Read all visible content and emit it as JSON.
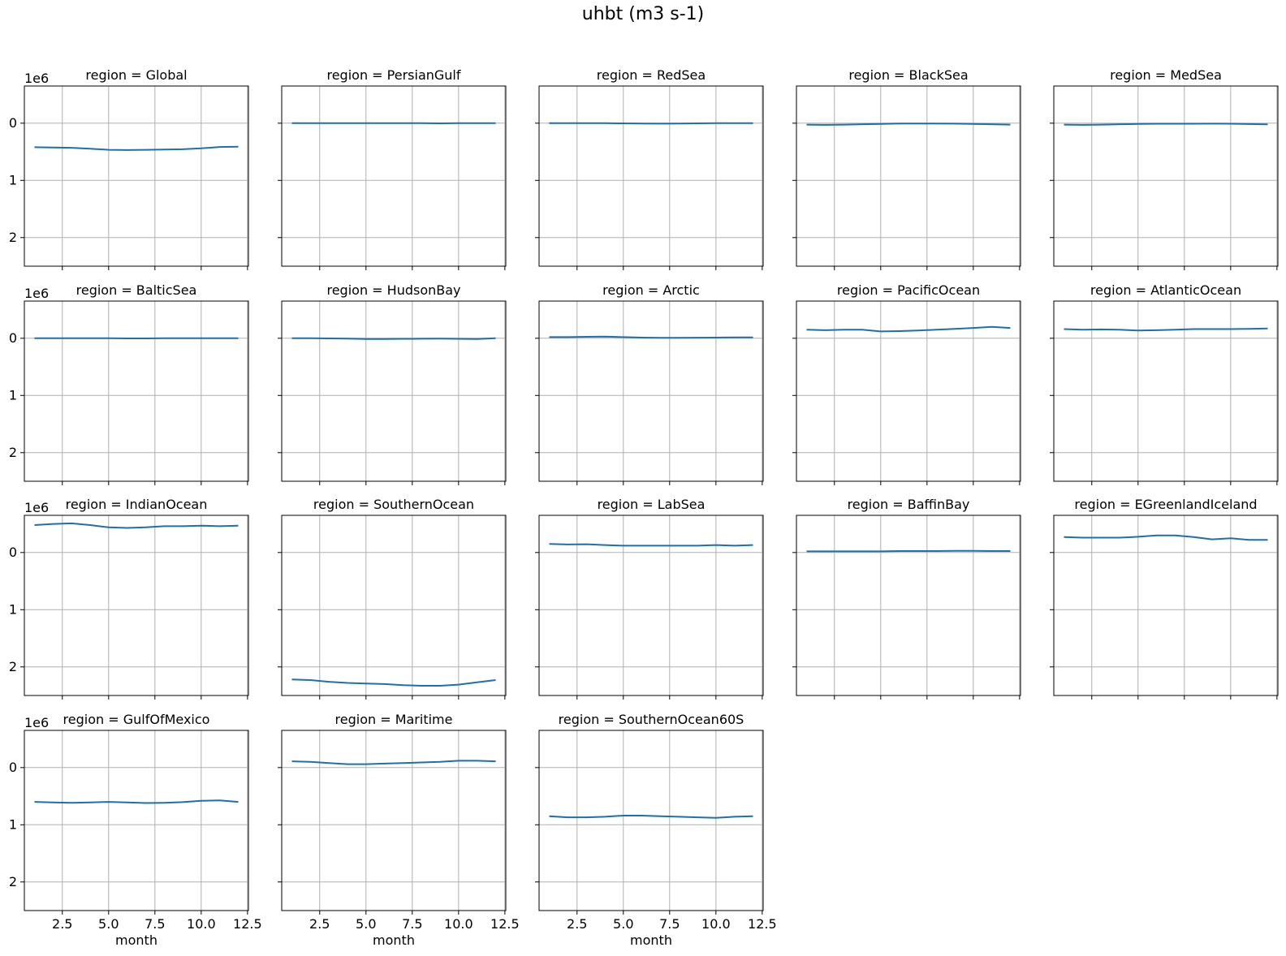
{
  "figure": {
    "title": "uhbt (m3 s-1)"
  },
  "chart_data": {
    "type": "line",
    "layout": "facet grid 4 rows x 5 cols",
    "title": "uhbt (m3 s-1)",
    "xlabel": "month",
    "ylabel": "",
    "y_offset_label": "1e6",
    "y_axis_inverted": true,
    "ylim": [
      -0.65,
      2.5
    ],
    "xlim": [
      0.45,
      12.55
    ],
    "xticks": [
      "2.5",
      "5.0",
      "7.5",
      "10.0",
      "12.5"
    ],
    "yticks": [
      "0",
      "1",
      "2"
    ],
    "grid": true,
    "line_color": "#1f6fab",
    "x": [
      1,
      2,
      3,
      4,
      5,
      6,
      7,
      8,
      9,
      10,
      11,
      12
    ],
    "panels": [
      {
        "title": "region = Global",
        "values": [
          0.42,
          0.425,
          0.43,
          0.445,
          0.465,
          0.47,
          0.465,
          0.46,
          0.455,
          0.44,
          0.415,
          0.41
        ]
      },
      {
        "title": "region = PersianGulf",
        "values": [
          0.0,
          0.0,
          0.0,
          0.0,
          0.0,
          -0.002,
          0.0,
          0.0,
          0.002,
          0.0,
          0.0,
          0.0
        ]
      },
      {
        "title": "region = RedSea",
        "values": [
          0.0,
          0.0,
          0.0,
          0.0,
          0.002,
          0.005,
          0.008,
          0.006,
          0.003,
          0.0,
          -0.002,
          0.0
        ]
      },
      {
        "title": "region = BlackSea",
        "values": [
          0.025,
          0.03,
          0.025,
          0.018,
          0.012,
          0.007,
          0.005,
          0.006,
          0.009,
          0.013,
          0.018,
          0.025
        ]
      },
      {
        "title": "region = MedSea",
        "values": [
          0.025,
          0.03,
          0.025,
          0.018,
          0.014,
          0.01,
          0.01,
          0.01,
          0.008,
          0.01,
          0.015,
          0.02
        ]
      },
      {
        "title": "region = BalticSea",
        "values": [
          0.0,
          0.0,
          0.0,
          0.0,
          0.0,
          0.002,
          0.002,
          0.0,
          0.0,
          0.0,
          0.0,
          0.0
        ]
      },
      {
        "title": "region = HudsonBay",
        "values": [
          0.0,
          0.0,
          0.002,
          0.006,
          0.012,
          0.012,
          0.01,
          0.008,
          0.006,
          0.01,
          0.012,
          0.0
        ]
      },
      {
        "title": "region = Arctic",
        "values": [
          -0.02,
          -0.02,
          -0.025,
          -0.03,
          -0.02,
          -0.012,
          -0.008,
          -0.008,
          -0.01,
          -0.012,
          -0.015,
          -0.015
        ]
      },
      {
        "title": "region = PacificOcean",
        "values": [
          -0.15,
          -0.14,
          -0.15,
          -0.15,
          -0.12,
          -0.125,
          -0.135,
          -0.15,
          -0.165,
          -0.18,
          -0.2,
          -0.18
        ]
      },
      {
        "title": "region = AtlanticOcean",
        "values": [
          -0.16,
          -0.15,
          -0.155,
          -0.15,
          -0.135,
          -0.14,
          -0.15,
          -0.16,
          -0.16,
          -0.16,
          -0.165,
          -0.17
        ]
      },
      {
        "title": "region = IndianOcean",
        "values": [
          -0.48,
          -0.5,
          -0.51,
          -0.48,
          -0.44,
          -0.43,
          -0.44,
          -0.46,
          -0.46,
          -0.47,
          -0.46,
          -0.47
        ]
      },
      {
        "title": "region = SouthernOcean",
        "values": [
          2.22,
          2.23,
          2.26,
          2.28,
          2.29,
          2.3,
          2.32,
          2.33,
          2.33,
          2.31,
          2.27,
          2.23
        ]
      },
      {
        "title": "region = LabSea",
        "values": [
          -0.15,
          -0.14,
          -0.145,
          -0.13,
          -0.12,
          -0.12,
          -0.12,
          -0.12,
          -0.12,
          -0.13,
          -0.12,
          -0.13
        ]
      },
      {
        "title": "region = BaffinBay",
        "values": [
          -0.02,
          -0.02,
          -0.02,
          -0.02,
          -0.02,
          -0.025,
          -0.025,
          -0.025,
          -0.03,
          -0.03,
          -0.025,
          -0.025
        ]
      },
      {
        "title": "region = EGreenlandIceland",
        "values": [
          -0.27,
          -0.26,
          -0.26,
          -0.26,
          -0.275,
          -0.3,
          -0.3,
          -0.27,
          -0.23,
          -0.25,
          -0.22,
          -0.22
        ]
      },
      {
        "title": "region = GulfOfMexico",
        "values": [
          0.6,
          0.61,
          0.615,
          0.61,
          0.6,
          0.61,
          0.62,
          0.615,
          0.605,
          0.58,
          0.575,
          0.6
        ]
      },
      {
        "title": "region = Maritime",
        "values": [
          -0.11,
          -0.1,
          -0.08,
          -0.06,
          -0.06,
          -0.07,
          -0.08,
          -0.09,
          -0.1,
          -0.12,
          -0.12,
          -0.11
        ]
      },
      {
        "title": "region = SouthernOcean60S",
        "values": [
          0.85,
          0.87,
          0.87,
          0.86,
          0.84,
          0.84,
          0.85,
          0.86,
          0.87,
          0.88,
          0.86,
          0.85
        ]
      }
    ]
  }
}
